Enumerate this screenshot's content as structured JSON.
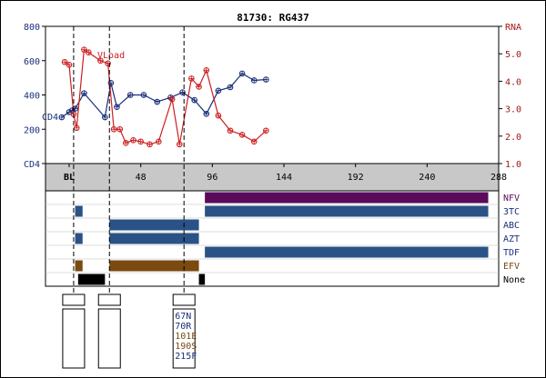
{
  "chart_data": {
    "type": "line",
    "title": "81730: RG437",
    "x_axis": {
      "range": [
        0,
        288
      ],
      "tick_labels": [
        {
          "value": 0,
          "label": "BL"
        },
        {
          "value": 48,
          "label": "48"
        },
        {
          "value": 96,
          "label": "96"
        },
        {
          "value": 144,
          "label": "144"
        },
        {
          "value": 192,
          "label": "192"
        },
        {
          "value": 240,
          "label": "240"
        },
        {
          "value": 288,
          "label": "288"
        }
      ]
    },
    "y_left": {
      "label": "CD4",
      "range": [
        0,
        800
      ],
      "ticks": [
        0,
        200,
        400,
        600,
        800
      ],
      "tick_labels": [
        "CD4",
        "200",
        "400",
        "600",
        "800"
      ],
      "color": "#1a2f7a"
    },
    "y_right": {
      "label": "RNA",
      "range": [
        1.0,
        6.0
      ],
      "ticks": [
        1.0,
        2.0,
        3.0,
        4.0,
        5.0,
        6.0
      ],
      "tick_labels": [
        "1.0",
        "2.0",
        "3.0",
        "4.0",
        "5.0",
        "RNA"
      ],
      "color": "#a01818"
    },
    "series": [
      {
        "name": "CD4",
        "axis": "left",
        "color": "#1a2f7a",
        "points": [
          {
            "x": -5,
            "y": 270
          },
          {
            "x": 0,
            "y": 300
          },
          {
            "x": 2,
            "y": 310
          },
          {
            "x": 4,
            "y": 320
          },
          {
            "x": 10,
            "y": 410
          },
          {
            "x": 24,
            "y": 270
          },
          {
            "x": 28,
            "y": 470
          },
          {
            "x": 32,
            "y": 330
          },
          {
            "x": 41,
            "y": 400
          },
          {
            "x": 50,
            "y": 400
          },
          {
            "x": 59,
            "y": 360
          },
          {
            "x": 68,
            "y": 385
          },
          {
            "x": 76,
            "y": 415
          },
          {
            "x": 84,
            "y": 370
          },
          {
            "x": 92,
            "y": 290
          },
          {
            "x": 100,
            "y": 425
          },
          {
            "x": 108,
            "y": 445
          },
          {
            "x": 116,
            "y": 525
          },
          {
            "x": 124,
            "y": 485
          },
          {
            "x": 132,
            "y": 490
          }
        ]
      },
      {
        "name": "VLoad",
        "axis": "right",
        "color": "#cc2020",
        "points": [
          {
            "x": -3,
            "y": 4.7
          },
          {
            "x": 0,
            "y": 4.6
          },
          {
            "x": 3,
            "y": 2.8
          },
          {
            "x": 5,
            "y": 2.3
          },
          {
            "x": 10,
            "y": 5.15
          },
          {
            "x": 13,
            "y": 5.05
          },
          {
            "x": 21,
            "y": 4.75
          },
          {
            "x": 26,
            "y": 4.65
          },
          {
            "x": 30,
            "y": 2.25
          },
          {
            "x": 34,
            "y": 2.25
          },
          {
            "x": 38,
            "y": 1.75
          },
          {
            "x": 43,
            "y": 1.85
          },
          {
            "x": 48,
            "y": 1.8
          },
          {
            "x": 54,
            "y": 1.7
          },
          {
            "x": 60,
            "y": 1.8
          },
          {
            "x": 69,
            "y": 3.35
          },
          {
            "x": 74,
            "y": 1.7
          },
          {
            "x": 82,
            "y": 4.1
          },
          {
            "x": 87,
            "y": 3.8
          },
          {
            "x": 92,
            "y": 4.4
          },
          {
            "x": 100,
            "y": 2.75
          },
          {
            "x": 108,
            "y": 2.2
          },
          {
            "x": 116,
            "y": 2.05
          },
          {
            "x": 124,
            "y": 1.8
          },
          {
            "x": 132,
            "y": 2.2
          }
        ]
      }
    ],
    "series_labels": [
      {
        "text": "VLoad",
        "color": "#cc2020"
      },
      {
        "text": "CD4",
        "color": "#1a2f7a"
      }
    ],
    "event_markers_x": [
      3,
      27,
      77
    ],
    "drug_rows": [
      {
        "name": "NFV",
        "color": "#5a0a5a",
        "label_color": "#5a0a5a",
        "bars": [
          [
            91,
            281
          ]
        ]
      },
      {
        "name": "3TC",
        "color": "#2a5286",
        "label_color": "#1a2f7a",
        "bars": [
          [
            4,
            9
          ],
          [
            91,
            281
          ]
        ]
      },
      {
        "name": "ABC",
        "color": "#2a5286",
        "label_color": "#1a2f7a",
        "bars": [
          [
            27,
            87
          ]
        ]
      },
      {
        "name": "AZT",
        "color": "#2a5286",
        "label_color": "#1a2f7a",
        "bars": [
          [
            4,
            9
          ],
          [
            27,
            87
          ]
        ]
      },
      {
        "name": "TDF",
        "color": "#2a5286",
        "label_color": "#1a2f7a",
        "bars": [
          [
            91,
            281
          ]
        ]
      },
      {
        "name": "EFV",
        "color": "#7a4a10",
        "label_color": "#7a4a10",
        "bars": [
          [
            4,
            9
          ],
          [
            27,
            87
          ]
        ]
      },
      {
        "name": "None",
        "color": "#000000",
        "label_color": "#000000",
        "bars": [
          [
            6,
            24
          ],
          [
            87,
            91
          ]
        ]
      }
    ],
    "mutation_boxes": [
      {
        "x": 3,
        "mutations": []
      },
      {
        "x": 27,
        "mutations": []
      },
      {
        "x": 77,
        "mutations": [
          {
            "text": "67N",
            "color": "#1a2f7a"
          },
          {
            "text": "70R",
            "color": "#1a2f7a"
          },
          {
            "text": "101E",
            "color": "#7a4a10"
          },
          {
            "text": "190S",
            "color": "#7a4a10"
          },
          {
            "text": "215F",
            "color": "#1a2f7a"
          }
        ]
      }
    ]
  }
}
